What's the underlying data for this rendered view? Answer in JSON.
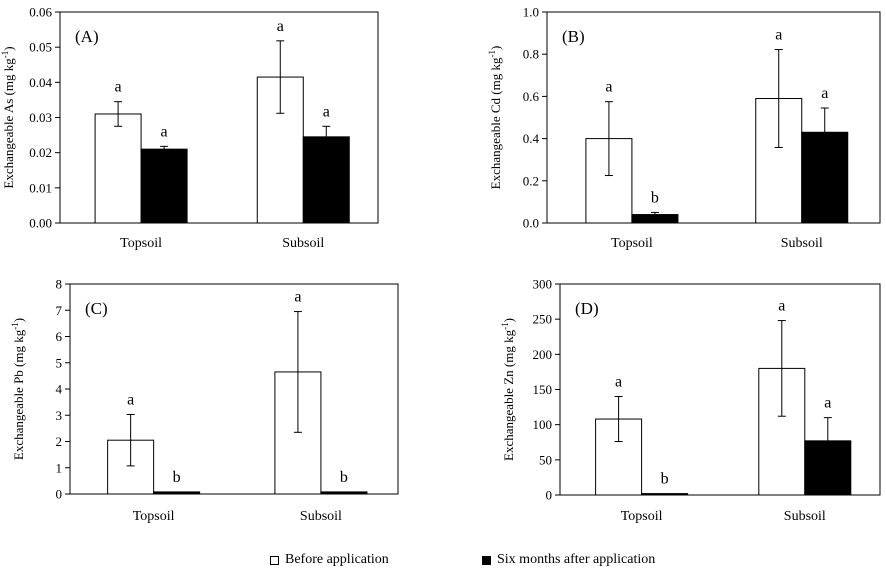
{
  "colors": {
    "before": "#ffffff",
    "after": "#000000",
    "stroke": "#000000"
  },
  "legend": {
    "before_label": "Before application",
    "after_label": "Six months after application"
  },
  "chart_data": [
    {
      "type": "bar",
      "panel_label": "(A)",
      "ylabel": "Exchangeable As (mg kg",
      "ylabel_sup": "-1",
      "ylabel_end": ")",
      "ylim": [
        0,
        0.06
      ],
      "yticks": [
        "0.00",
        "0.01",
        "0.02",
        "0.03",
        "0.04",
        "0.05",
        "0.06"
      ],
      "categories": [
        "Topsoil",
        "Subsoil"
      ],
      "series": [
        {
          "name": "Before application",
          "values": [
            0.031,
            0.0415
          ],
          "errors": [
            0.0035,
            0.0103
          ],
          "letters": [
            "a",
            "a"
          ]
        },
        {
          "name": "Six months after application",
          "values": [
            0.021,
            0.0245
          ],
          "errors": [
            0.0008,
            0.003
          ],
          "letters": [
            "a",
            "a"
          ]
        }
      ]
    },
    {
      "type": "bar",
      "panel_label": "(B)",
      "ylabel": "Exchangeable Cd (mg kg",
      "ylabel_sup": "-1",
      "ylabel_end": ")",
      "ylim": [
        0,
        1.0
      ],
      "yticks": [
        "0.0",
        "0.2",
        "0.4",
        "0.6",
        "0.8",
        "1.0"
      ],
      "categories": [
        "Topsoil",
        "Subsoil"
      ],
      "series": [
        {
          "name": "Before application",
          "values": [
            0.4,
            0.59
          ],
          "errors": [
            0.175,
            0.232
          ],
          "letters": [
            "a",
            "a"
          ]
        },
        {
          "name": "Six months after application",
          "values": [
            0.04,
            0.43
          ],
          "errors": [
            0.01,
            0.115
          ],
          "letters": [
            "b",
            "a"
          ]
        }
      ]
    },
    {
      "type": "bar",
      "panel_label": "(C)",
      "ylabel": "Exchangeable Pb (mg kg",
      "ylabel_sup": "-1",
      "ylabel_end": ")",
      "ylim": [
        0,
        8
      ],
      "yticks": [
        "0",
        "1",
        "2",
        "3",
        "4",
        "5",
        "6",
        "7",
        "8"
      ],
      "categories": [
        "Topsoil",
        "Subsoil"
      ],
      "series": [
        {
          "name": "Before application",
          "values": [
            2.05,
            4.65
          ],
          "errors": [
            0.98,
            2.3
          ],
          "letters": [
            "a",
            "a"
          ]
        },
        {
          "name": "Six months after application",
          "values": [
            0.08,
            0.08
          ],
          "errors": [
            0,
            0
          ],
          "letters": [
            "b",
            "b"
          ]
        }
      ]
    },
    {
      "type": "bar",
      "panel_label": "(D)",
      "ylabel": "Exchangeable Zn (mg kg",
      "ylabel_sup": "-1",
      "ylabel_end": ")",
      "ylim": [
        0,
        300
      ],
      "yticks": [
        "0",
        "50",
        "100",
        "150",
        "200",
        "250",
        "300"
      ],
      "categories": [
        "Topsoil",
        "Subsoil"
      ],
      "series": [
        {
          "name": "Before application",
          "values": [
            108,
            180
          ],
          "errors": [
            32,
            68
          ],
          "letters": [
            "a",
            "a"
          ]
        },
        {
          "name": "Six months after application",
          "values": [
            2,
            77
          ],
          "errors": [
            0,
            33
          ],
          "letters": [
            "b",
            "a"
          ]
        }
      ]
    }
  ]
}
